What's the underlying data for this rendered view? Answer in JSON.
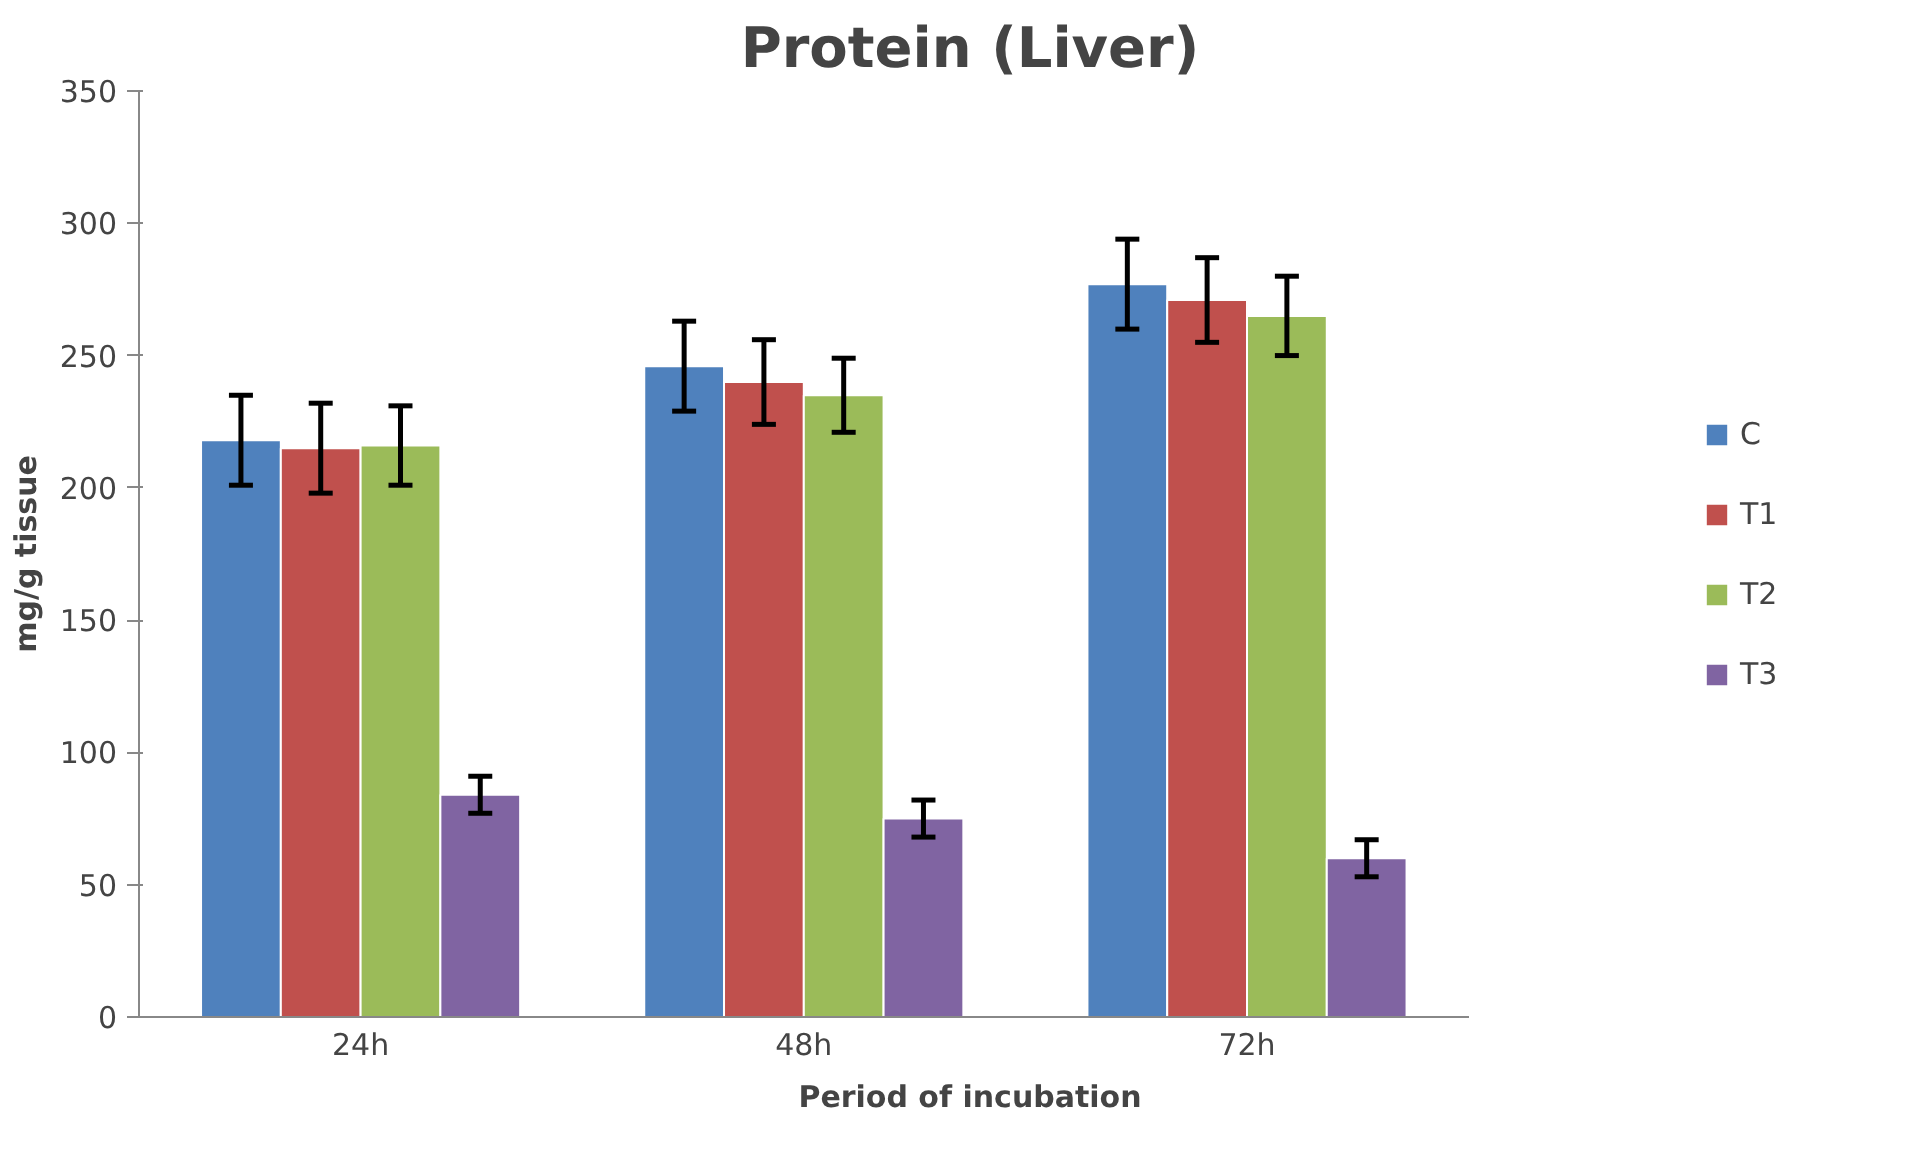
{
  "chart_data": {
    "type": "bar",
    "title": "Protein (Liver)",
    "xlabel": "Period of incubation",
    "ylabel": "mg/g tissue",
    "categories": [
      "24h",
      "48h",
      "72h"
    ],
    "series": [
      {
        "name": "C",
        "color": "#4f81bd",
        "values": [
          218,
          246,
          277
        ],
        "errors": [
          17,
          17,
          17
        ]
      },
      {
        "name": "T1",
        "color": "#c0504d",
        "values": [
          215,
          240,
          271
        ],
        "errors": [
          17,
          16,
          16
        ]
      },
      {
        "name": "T2",
        "color": "#9bbb59",
        "values": [
          216,
          235,
          265
        ],
        "errors": [
          15,
          14,
          15
        ]
      },
      {
        "name": "T3",
        "color": "#8064a2",
        "values": [
          84,
          75,
          60
        ],
        "errors": [
          7,
          7,
          7
        ]
      }
    ],
    "ylim": [
      0,
      350
    ],
    "yticks": [
      0,
      50,
      100,
      150,
      200,
      250,
      300,
      350
    ],
    "grid": false,
    "legend": "right"
  }
}
